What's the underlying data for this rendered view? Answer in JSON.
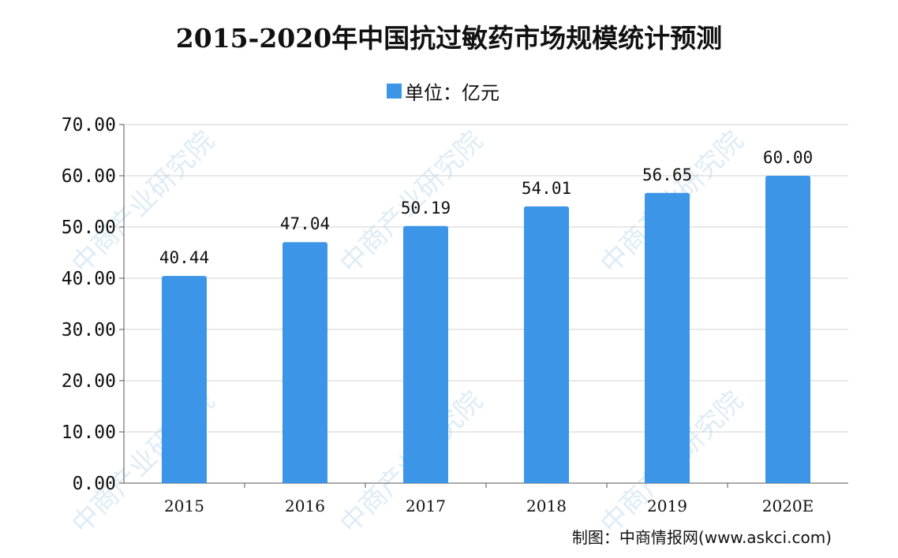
{
  "watermark": "中商产业研究院",
  "source": "制图：中商情报网(www.askci.com)",
  "colors": {
    "bar": "#3c95e6",
    "grid": "#d0d0d0",
    "axis": "#555555"
  },
  "chart_data": {
    "type": "bar",
    "title": "2015-2020年中国抗过敏药市场规模统计预测",
    "legend": "单位：亿元",
    "legend_position": "top",
    "categories": [
      "2015",
      "2016",
      "2017",
      "2018",
      "2019",
      "2020E"
    ],
    "values": [
      40.44,
      47.04,
      50.19,
      54.01,
      56.65,
      60.0
    ],
    "data_labels": [
      "40.44",
      "47.04",
      "50.19",
      "54.01",
      "56.65",
      "60.00"
    ],
    "ylim": [
      0,
      70
    ],
    "yticks": [
      "0.00",
      "10.00",
      "20.00",
      "30.00",
      "40.00",
      "50.00",
      "60.00",
      "70.00"
    ],
    "grid": true
  }
}
